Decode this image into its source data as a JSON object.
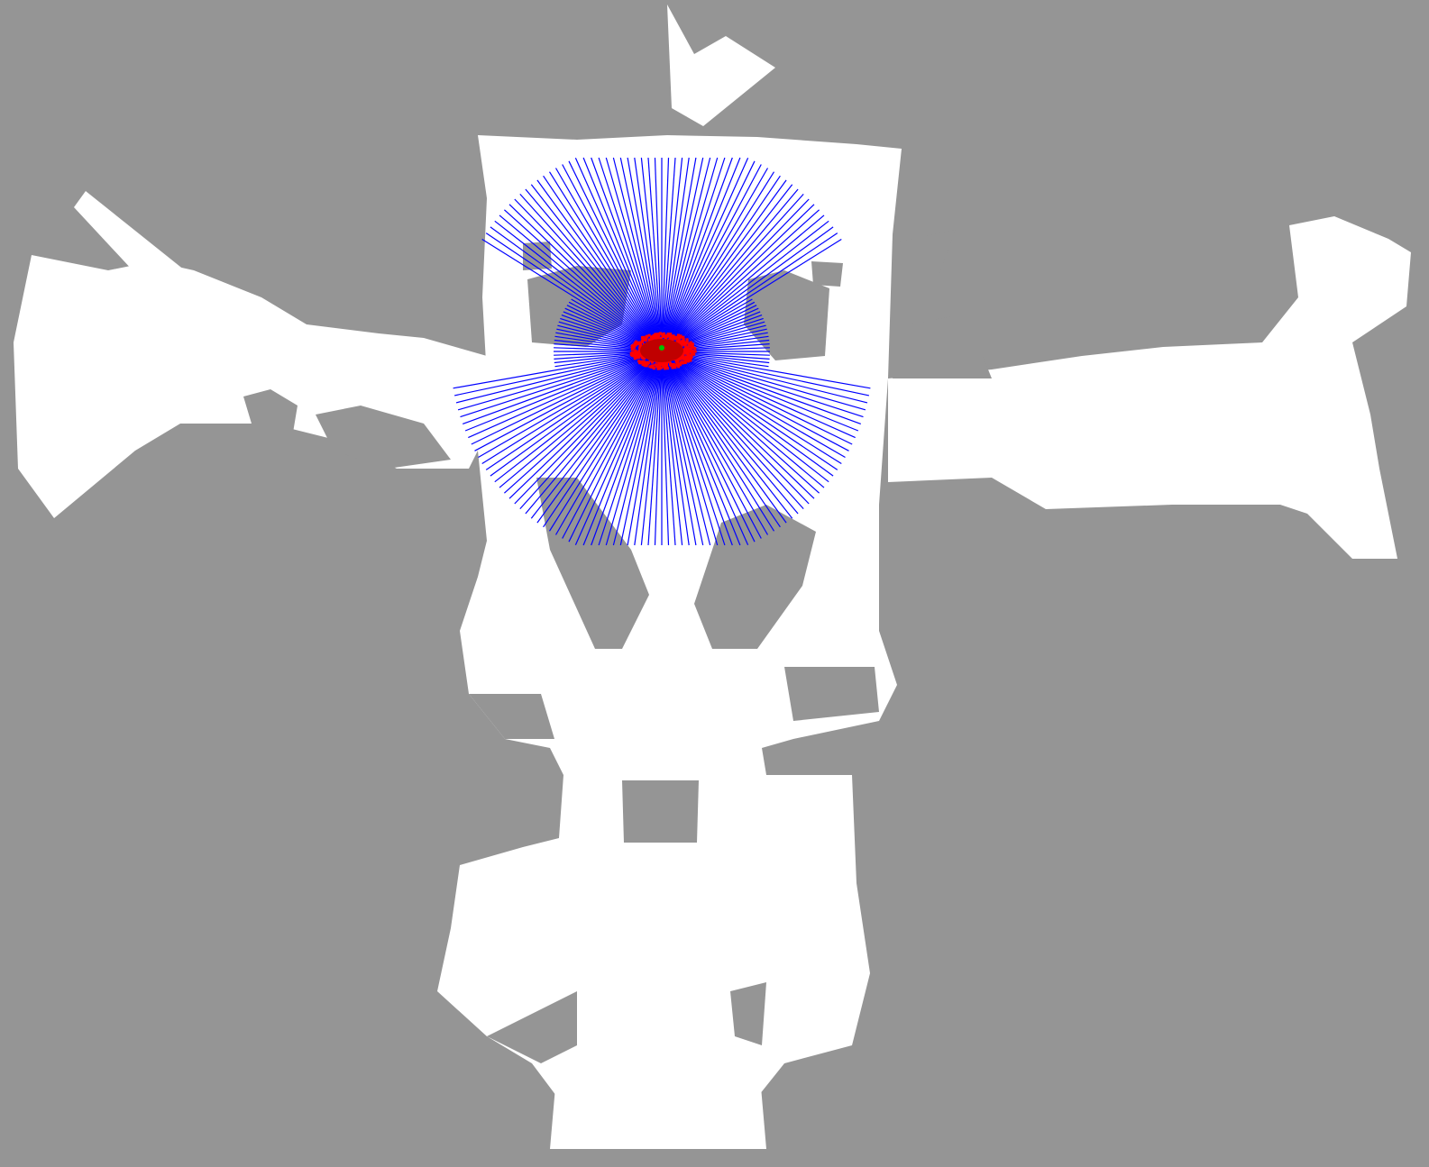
{
  "map": {
    "unknown_color": "#959595",
    "free_color": "#ffffff",
    "laser_color": "#0000ff",
    "particle_color": "#ff0000",
    "robot_color": "#00c000"
  },
  "laser_scan": {
    "angle_min_deg": -180,
    "angle_max_deg": 180,
    "beam_count": 180
  },
  "particles": {
    "count": 600
  }
}
